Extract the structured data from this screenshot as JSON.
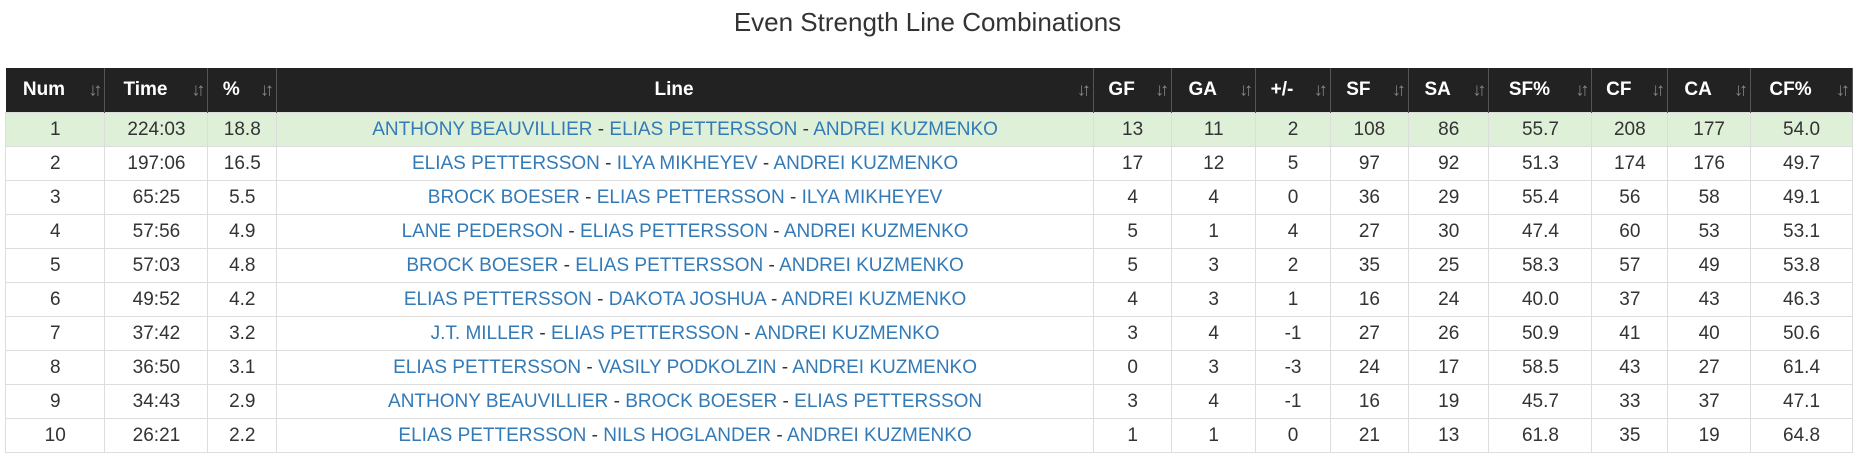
{
  "title": "Even Strength Line Combinations",
  "columns": [
    "Num",
    "Time",
    "%",
    "Line",
    "GF",
    "GA",
    "+/-",
    "SF",
    "SA",
    "SF%",
    "CF",
    "CA",
    "CF%"
  ],
  "separator": " - ",
  "sort_icon": "sort-arrows-icon",
  "colors": {
    "header_bg": "#222222",
    "highlight_row": "#dff0d8",
    "link": "#337ab7"
  },
  "rows": [
    {
      "num": "1",
      "time": "224:03",
      "pct": "18.8",
      "players": [
        "ANTHONY BEAUVILLIER",
        "ELIAS PETTERSSON",
        "ANDREI KUZMENKO"
      ],
      "gf": "13",
      "ga": "11",
      "pm": "2",
      "sf": "108",
      "sa": "86",
      "sfp": "55.7",
      "cf": "208",
      "ca": "177",
      "cfp": "54.0"
    },
    {
      "num": "2",
      "time": "197:06",
      "pct": "16.5",
      "players": [
        "ELIAS PETTERSSON",
        "ILYA MIKHEYEV",
        "ANDREI KUZMENKO"
      ],
      "gf": "17",
      "ga": "12",
      "pm": "5",
      "sf": "97",
      "sa": "92",
      "sfp": "51.3",
      "cf": "174",
      "ca": "176",
      "cfp": "49.7"
    },
    {
      "num": "3",
      "time": "65:25",
      "pct": "5.5",
      "players": [
        "BROCK BOESER",
        "ELIAS PETTERSSON",
        "ILYA MIKHEYEV"
      ],
      "gf": "4",
      "ga": "4",
      "pm": "0",
      "sf": "36",
      "sa": "29",
      "sfp": "55.4",
      "cf": "56",
      "ca": "58",
      "cfp": "49.1"
    },
    {
      "num": "4",
      "time": "57:56",
      "pct": "4.9",
      "players": [
        "LANE PEDERSON",
        "ELIAS PETTERSSON",
        "ANDREI KUZMENKO"
      ],
      "gf": "5",
      "ga": "1",
      "pm": "4",
      "sf": "27",
      "sa": "30",
      "sfp": "47.4",
      "cf": "60",
      "ca": "53",
      "cfp": "53.1"
    },
    {
      "num": "5",
      "time": "57:03",
      "pct": "4.8",
      "players": [
        "BROCK BOESER",
        "ELIAS PETTERSSON",
        "ANDREI KUZMENKO"
      ],
      "gf": "5",
      "ga": "3",
      "pm": "2",
      "sf": "35",
      "sa": "25",
      "sfp": "58.3",
      "cf": "57",
      "ca": "49",
      "cfp": "53.8"
    },
    {
      "num": "6",
      "time": "49:52",
      "pct": "4.2",
      "players": [
        "ELIAS PETTERSSON",
        "DAKOTA JOSHUA",
        "ANDREI KUZMENKO"
      ],
      "gf": "4",
      "ga": "3",
      "pm": "1",
      "sf": "16",
      "sa": "24",
      "sfp": "40.0",
      "cf": "37",
      "ca": "43",
      "cfp": "46.3"
    },
    {
      "num": "7",
      "time": "37:42",
      "pct": "3.2",
      "players": [
        "J.T. MILLER",
        "ELIAS PETTERSSON",
        "ANDREI KUZMENKO"
      ],
      "gf": "3",
      "ga": "4",
      "pm": "-1",
      "sf": "27",
      "sa": "26",
      "sfp": "50.9",
      "cf": "41",
      "ca": "40",
      "cfp": "50.6"
    },
    {
      "num": "8",
      "time": "36:50",
      "pct": "3.1",
      "players": [
        "ELIAS PETTERSSON",
        "VASILY PODKOLZIN",
        "ANDREI KUZMENKO"
      ],
      "gf": "0",
      "ga": "3",
      "pm": "-3",
      "sf": "24",
      "sa": "17",
      "sfp": "58.5",
      "cf": "43",
      "ca": "27",
      "cfp": "61.4"
    },
    {
      "num": "9",
      "time": "34:43",
      "pct": "2.9",
      "players": [
        "ANTHONY BEAUVILLIER",
        "BROCK BOESER",
        "ELIAS PETTERSSON"
      ],
      "gf": "3",
      "ga": "4",
      "pm": "-1",
      "sf": "16",
      "sa": "19",
      "sfp": "45.7",
      "cf": "33",
      "ca": "37",
      "cfp": "47.1"
    },
    {
      "num": "10",
      "time": "26:21",
      "pct": "2.2",
      "players": [
        "ELIAS PETTERSSON",
        "NILS HOGLANDER",
        "ANDREI KUZMENKO"
      ],
      "gf": "1",
      "ga": "1",
      "pm": "0",
      "sf": "21",
      "sa": "13",
      "sfp": "61.8",
      "cf": "35",
      "ca": "19",
      "cfp": "64.8"
    }
  ]
}
